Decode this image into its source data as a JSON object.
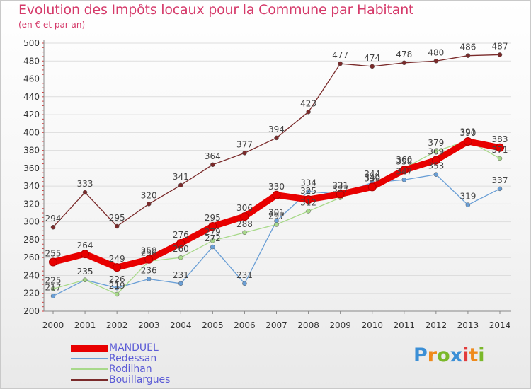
{
  "header": {
    "title": "Evolution des Impôts locaux pour la Commune par Habitant",
    "subtitle": "(en € et par an)"
  },
  "logo": {
    "text": "Proxiti",
    "letters": [
      {
        "char": "P",
        "color": "#3b8fd6"
      },
      {
        "char": "r",
        "color": "#ef8a1c"
      },
      {
        "char": "o",
        "color": "#7bb82a"
      },
      {
        "char": "x",
        "color": "#3b8fd6"
      },
      {
        "char": "i",
        "color": "#e23b3b"
      },
      {
        "char": "t",
        "color": "#ef8a1c"
      },
      {
        "char": "i",
        "color": "#7bb82a"
      }
    ]
  },
  "chart_data": {
    "type": "line",
    "title": "Evolution des Impôts locaux pour la Commune par Habitant",
    "subtitle": "(en € et par an)",
    "x": [
      "2000",
      "2001",
      "2002",
      "2003",
      "2004",
      "2005",
      "2006",
      "2007",
      "2008",
      "2009",
      "2010",
      "2011",
      "2012",
      "2013",
      "2014"
    ],
    "ylim": [
      200,
      500
    ],
    "yticks": [
      200,
      220,
      240,
      260,
      280,
      300,
      320,
      340,
      360,
      380,
      400,
      420,
      440,
      460,
      480,
      500
    ],
    "grid": "horizontal",
    "legend_position": "bottom-left",
    "series": [
      {
        "name": "MANDUEL",
        "color": "#e80000",
        "values": [
          255,
          264,
          249,
          258,
          276,
          295,
          306,
          330,
          325,
          331,
          339,
          358,
          369,
          390,
          383
        ],
        "labels": [
          "255",
          "264",
          "249",
          "258",
          "276",
          "295",
          "306",
          "330",
          "325",
          "331",
          "339",
          "358",
          "369",
          "390",
          "383"
        ]
      },
      {
        "name": "Redessan",
        "color": "#6a9fd6",
        "values": [
          217,
          235,
          226,
          236,
          231,
          272,
          231,
          301,
          334,
          331,
          344,
          347,
          353,
          319,
          337
        ],
        "labels": [
          "217",
          "235",
          "226",
          "236",
          "231",
          "272",
          "231",
          "301",
          "334",
          "331",
          "344",
          "347",
          "353",
          "319",
          "337"
        ]
      },
      {
        "name": "Rodilhan",
        "color": "#a8d98a",
        "values": [
          225,
          235,
          219,
          256,
          260,
          279,
          288,
          297,
          312,
          327,
          340,
          360,
          379,
          391,
          371
        ],
        "labels": [
          "225",
          "235",
          "219",
          "256",
          "260",
          "279",
          "288",
          "297",
          "312",
          "327",
          "340",
          "360",
          "379",
          "391",
          "371"
        ]
      },
      {
        "name": "Bouillargues",
        "color": "#7a2a2a",
        "values": [
          294,
          333,
          295,
          320,
          341,
          364,
          377,
          394,
          423,
          477,
          474,
          478,
          480,
          486,
          487
        ],
        "labels": [
          "294",
          "333",
          "295",
          "320",
          "341",
          "364",
          "377",
          "394",
          "423",
          "477",
          "474",
          "478",
          "480",
          "486",
          "487"
        ]
      }
    ]
  }
}
